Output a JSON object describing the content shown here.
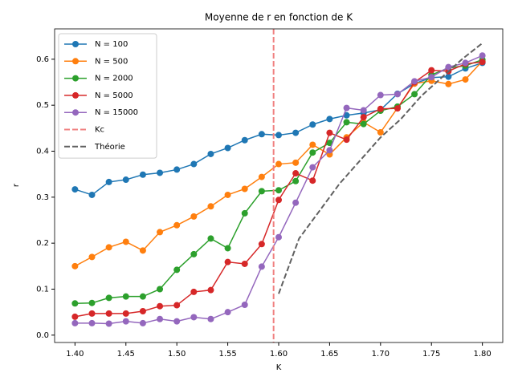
{
  "chart_data": {
    "type": "line",
    "title": "Moyenne de r en fonction de K",
    "x_label": "K",
    "y_label": "r",
    "x": [
      1.4,
      1.4166667,
      1.4333333,
      1.45,
      1.4666667,
      1.4833333,
      1.5,
      1.5166667,
      1.5333333,
      1.55,
      1.5666667,
      1.5833333,
      1.6,
      1.6166667,
      1.6333333,
      1.65,
      1.6666667,
      1.6833333,
      1.7,
      1.7166667,
      1.7333333,
      1.75,
      1.7666667,
      1.7833333,
      1.8
    ],
    "series": [
      {
        "name": "N = 100",
        "color": "#1f77b4",
        "values": [
          0.317,
          0.305,
          0.333,
          0.338,
          0.349,
          0.353,
          0.36,
          0.372,
          0.394,
          0.407,
          0.424,
          0.437,
          0.435,
          0.44,
          0.458,
          0.47,
          0.478,
          0.483,
          0.49,
          0.525,
          0.547,
          0.56,
          0.562,
          0.58,
          0.592
        ]
      },
      {
        "name": "N = 500",
        "color": "#ff7f0e",
        "values": [
          0.15,
          0.17,
          0.191,
          0.203,
          0.184,
          0.224,
          0.239,
          0.258,
          0.28,
          0.305,
          0.318,
          0.344,
          0.372,
          0.375,
          0.414,
          0.393,
          0.43,
          0.463,
          0.441,
          0.494,
          0.547,
          0.553,
          0.546,
          0.556,
          0.596
        ]
      },
      {
        "name": "N = 2000",
        "color": "#2ca02c",
        "values": [
          0.069,
          0.07,
          0.081,
          0.084,
          0.084,
          0.1,
          0.142,
          0.176,
          0.21,
          0.189,
          0.265,
          0.313,
          0.315,
          0.335,
          0.397,
          0.418,
          0.463,
          0.459,
          0.488,
          0.497,
          0.524,
          0.566,
          0.581,
          0.586,
          0.599
        ]
      },
      {
        "name": "N = 5000",
        "color": "#d62728",
        "values": [
          0.04,
          0.047,
          0.047,
          0.047,
          0.052,
          0.063,
          0.065,
          0.094,
          0.098,
          0.159,
          0.155,
          0.198,
          0.294,
          0.352,
          0.336,
          0.44,
          0.425,
          0.474,
          0.492,
          0.493,
          0.55,
          0.576,
          0.574,
          0.59,
          0.594
        ]
      },
      {
        "name": "N = 15000",
        "color": "#9467bd",
        "values": [
          0.026,
          0.026,
          0.025,
          0.03,
          0.026,
          0.035,
          0.03,
          0.039,
          0.035,
          0.05,
          0.066,
          0.149,
          0.213,
          0.288,
          0.365,
          0.402,
          0.494,
          0.489,
          0.522,
          0.524,
          0.552,
          0.561,
          0.583,
          0.592,
          0.608
        ]
      }
    ],
    "kc": {
      "name": "Kc",
      "color": "#f08080",
      "value": 1.595
    },
    "theory": {
      "name": "Théorie",
      "color": "#606060",
      "x": [
        1.6,
        1.62,
        1.64,
        1.66,
        1.68,
        1.7,
        1.72,
        1.74,
        1.76,
        1.78,
        1.8
      ],
      "values": [
        0.09,
        0.21,
        0.27,
        0.33,
        0.38,
        0.43,
        0.47,
        0.52,
        0.56,
        0.6,
        0.635
      ]
    },
    "xlim": [
      1.38,
      1.82
    ],
    "ylim": [
      -0.016,
      0.666
    ],
    "xticks": [
      {
        "value": 1.4,
        "label": "1.40"
      },
      {
        "value": 1.45,
        "label": "1.45"
      },
      {
        "value": 1.5,
        "label": "1.50"
      },
      {
        "value": 1.55,
        "label": "1.55"
      },
      {
        "value": 1.6,
        "label": "1.60"
      },
      {
        "value": 1.65,
        "label": "1.65"
      },
      {
        "value": 1.7,
        "label": "1.70"
      },
      {
        "value": 1.75,
        "label": "1.75"
      },
      {
        "value": 1.8,
        "label": "1.80"
      }
    ],
    "yticks": [
      {
        "value": 0,
        "label": "0.0"
      },
      {
        "value": 0.1,
        "label": "0.1"
      },
      {
        "value": 0.2,
        "label": "0.2"
      },
      {
        "value": 0.3,
        "label": "0.3"
      },
      {
        "value": 0.4,
        "label": "0.4"
      },
      {
        "value": 0.5,
        "label": "0.5"
      },
      {
        "value": 0.6,
        "label": "0.6"
      }
    ],
    "legend": "upper left",
    "grid": false
  }
}
